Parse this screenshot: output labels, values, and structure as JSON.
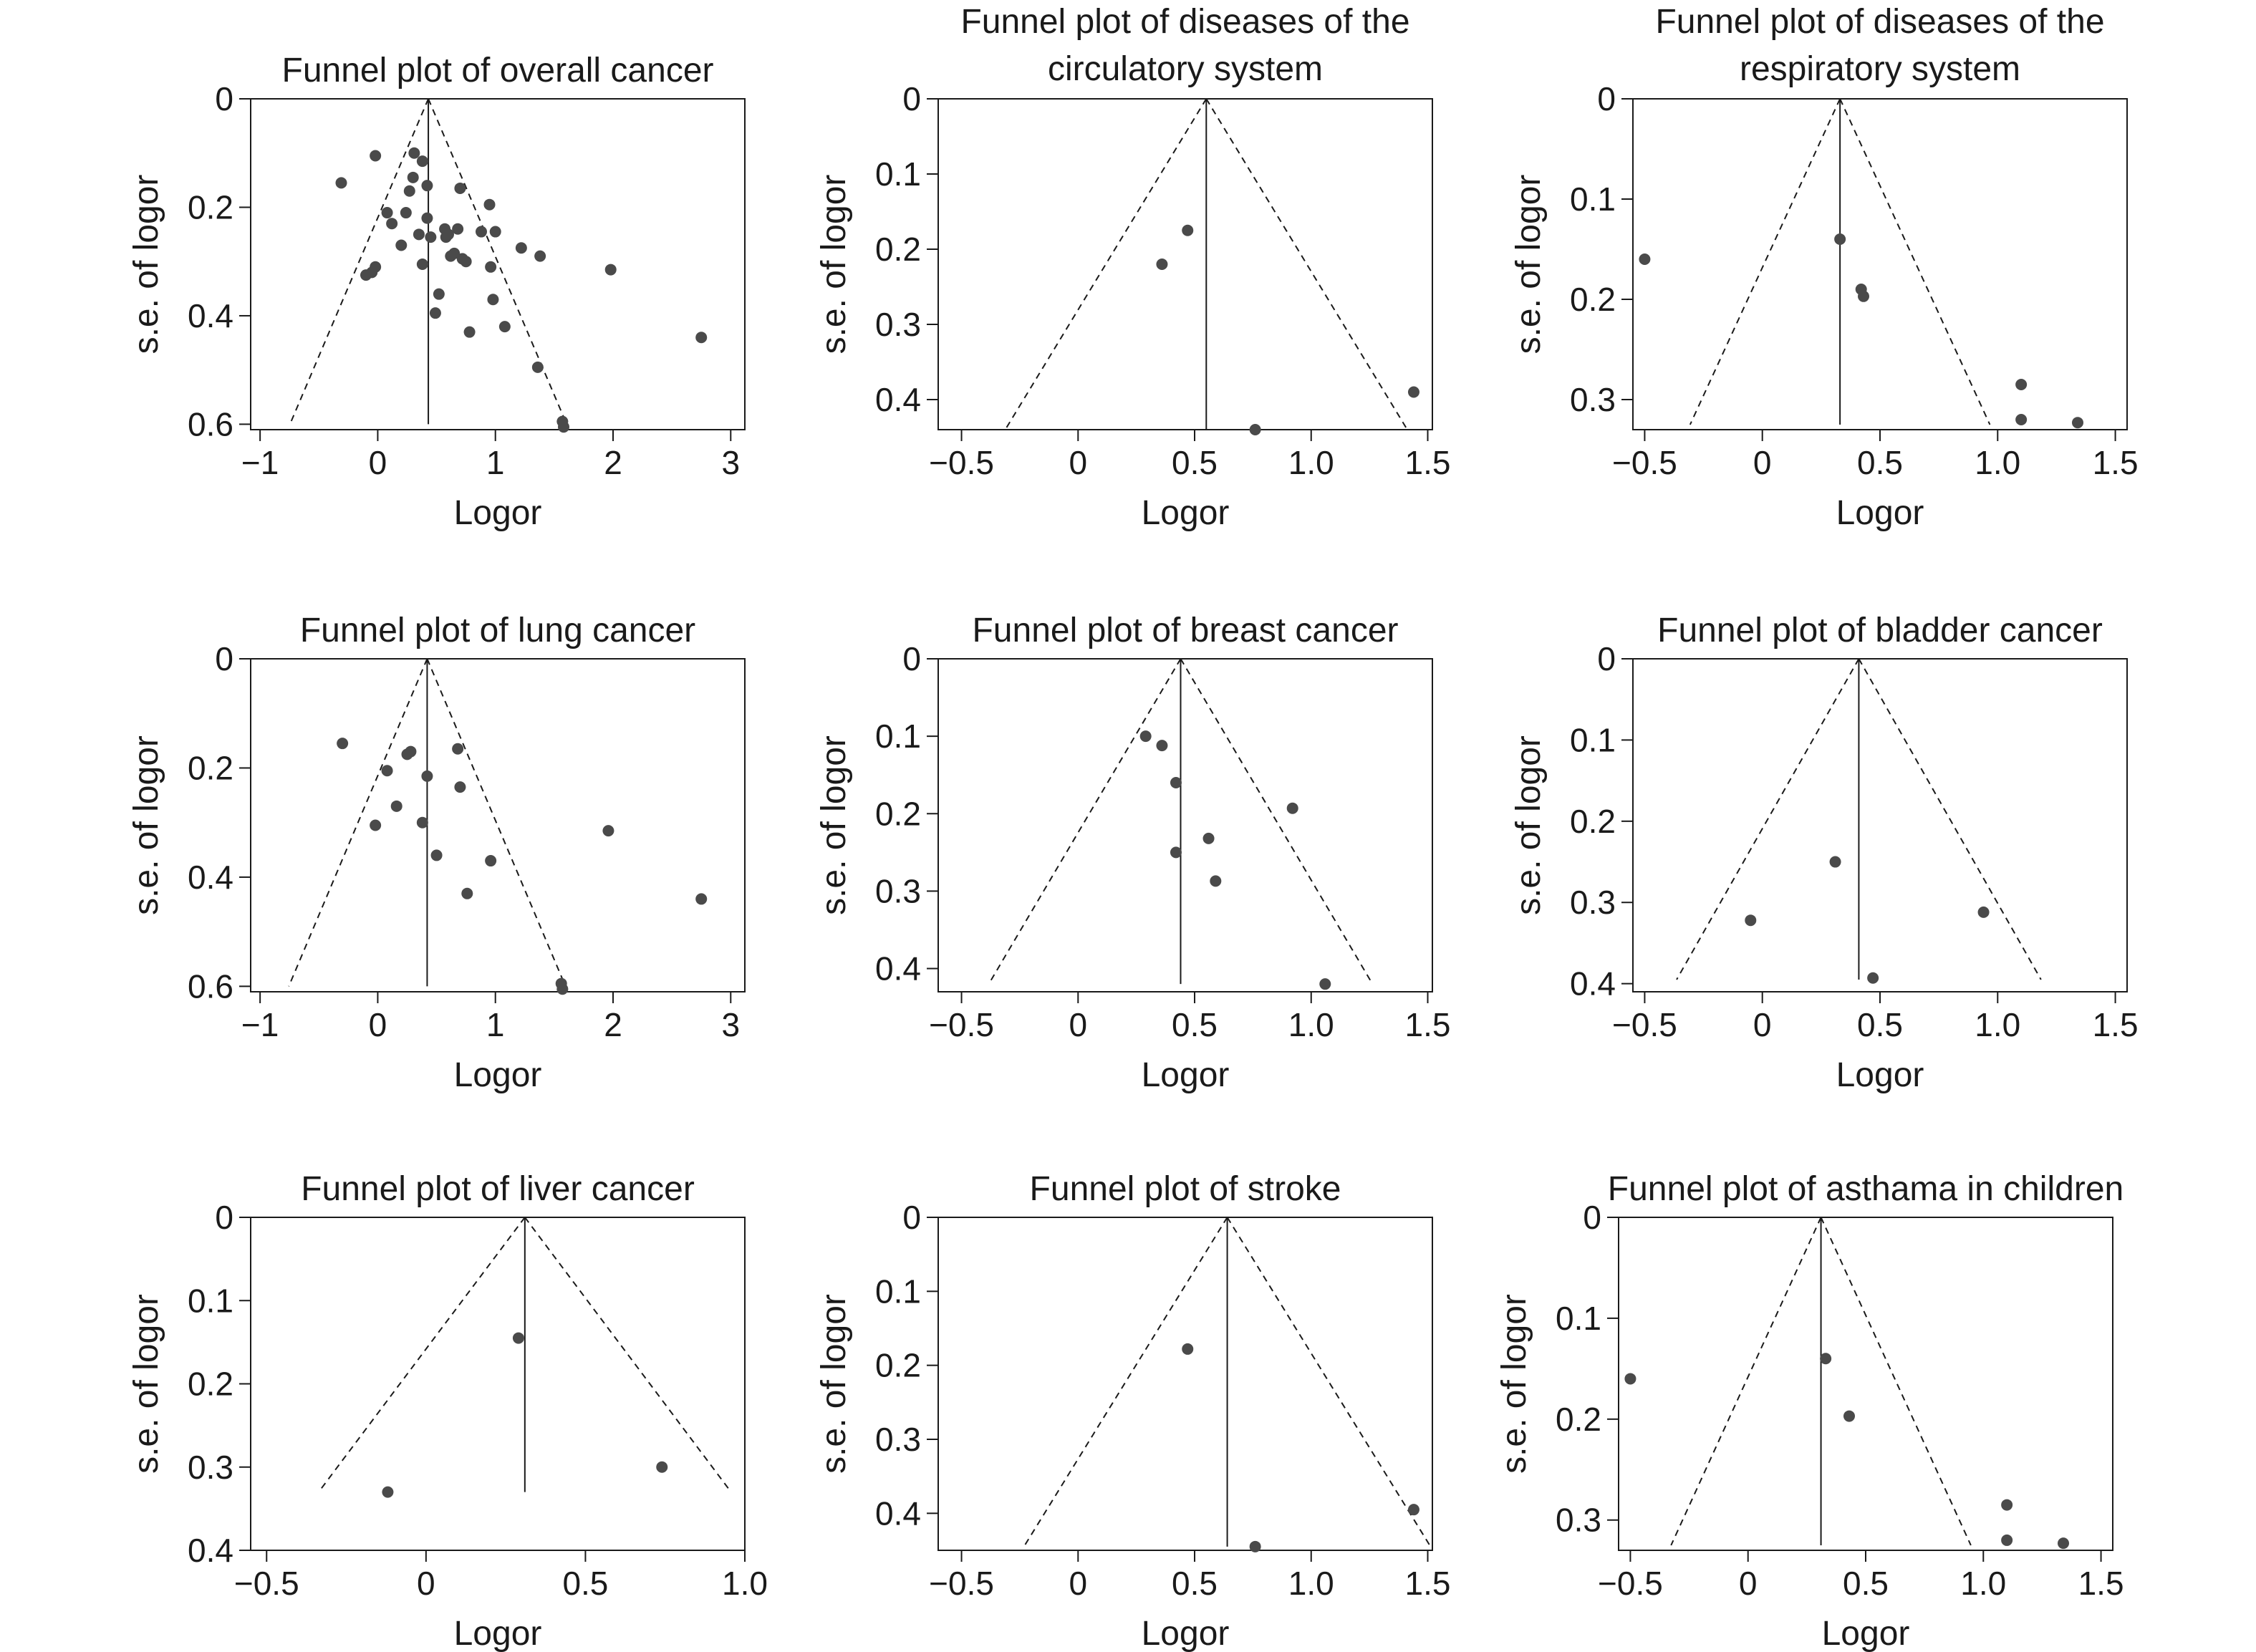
{
  "colors": {
    "point": "#4a4a4a",
    "line": "#1a1a1a",
    "funnel": "#1a1a1a",
    "background": "#ffffff"
  },
  "chart_data": [
    {
      "type": "scatter",
      "title": "Funnel plot of overall cancer",
      "xlabel": "Logor",
      "ylabel": "s.e. of logor",
      "xlim": [
        -1.08,
        3.12
      ],
      "ylim": [
        0,
        0.61
      ],
      "y_inverted": true,
      "xticks": [
        -1,
        0,
        1,
        2,
        3
      ],
      "xtick_labels": [
        "−1",
        "0",
        "1",
        "2",
        "3"
      ],
      "yticks": [
        0,
        0.2,
        0.4,
        0.6
      ],
      "ytick_labels": [
        "0",
        "0.2",
        "0.4",
        "0.6"
      ],
      "pooled": 0.43,
      "funnel_max_se": 0.6,
      "grid": false,
      "points": [
        {
          "x": -0.31,
          "y": 0.155
        },
        {
          "x": -0.02,
          "y": 0.105
        },
        {
          "x": 0.08,
          "y": 0.21
        },
        {
          "x": 0.12,
          "y": 0.23
        },
        {
          "x": 0.2,
          "y": 0.27
        },
        {
          "x": 0.24,
          "y": 0.21
        },
        {
          "x": 0.27,
          "y": 0.17
        },
        {
          "x": 0.3,
          "y": 0.145
        },
        {
          "x": 0.31,
          "y": 0.1
        },
        {
          "x": 0.35,
          "y": 0.25
        },
        {
          "x": 0.38,
          "y": 0.115
        },
        {
          "x": 0.38,
          "y": 0.305
        },
        {
          "x": 0.42,
          "y": 0.16
        },
        {
          "x": 0.42,
          "y": 0.22
        },
        {
          "x": 0.45,
          "y": 0.255
        },
        {
          "x": 0.49,
          "y": 0.395
        },
        {
          "x": 0.52,
          "y": 0.36
        },
        {
          "x": 0.57,
          "y": 0.24
        },
        {
          "x": 0.58,
          "y": 0.255
        },
        {
          "x": 0.6,
          "y": 0.25
        },
        {
          "x": 0.62,
          "y": 0.29
        },
        {
          "x": 0.65,
          "y": 0.285
        },
        {
          "x": 0.68,
          "y": 0.24
        },
        {
          "x": 0.7,
          "y": 0.165
        },
        {
          "x": 0.72,
          "y": 0.295
        },
        {
          "x": 0.75,
          "y": 0.3
        },
        {
          "x": 0.78,
          "y": 0.43
        },
        {
          "x": 0.88,
          "y": 0.245
        },
        {
          "x": 0.95,
          "y": 0.195
        },
        {
          "x": 0.96,
          "y": 0.31
        },
        {
          "x": 0.98,
          "y": 0.37
        },
        {
          "x": 1.0,
          "y": 0.245
        },
        {
          "x": 1.08,
          "y": 0.42
        },
        {
          "x": 1.22,
          "y": 0.275
        },
        {
          "x": 1.38,
          "y": 0.29
        },
        {
          "x": 1.36,
          "y": 0.495
        },
        {
          "x": 1.57,
          "y": 0.595
        },
        {
          "x": 1.58,
          "y": 0.605
        },
        {
          "x": 1.98,
          "y": 0.315
        },
        {
          "x": 2.75,
          "y": 0.44
        },
        {
          "x": -0.02,
          "y": 0.31
        },
        {
          "x": -0.1,
          "y": 0.325
        },
        {
          "x": -0.05,
          "y": 0.32
        }
      ]
    },
    {
      "type": "scatter",
      "title": "Funnel plot of diseases of the circulatory system",
      "xlabel": "Logor",
      "ylabel": "s.e. of logor",
      "xlim": [
        -0.6,
        1.52
      ],
      "ylim": [
        0,
        0.44
      ],
      "y_inverted": true,
      "xticks": [
        -0.5,
        0,
        0.5,
        1.0,
        1.5
      ],
      "xtick_labels": [
        "−0.5",
        "0",
        "0.5",
        "1.0",
        "1.5"
      ],
      "yticks": [
        0,
        0.1,
        0.2,
        0.3,
        0.4
      ],
      "ytick_labels": [
        "0",
        "0.1",
        "0.2",
        "0.3",
        "0.4"
      ],
      "pooled": 0.55,
      "funnel_max_se": 0.44,
      "grid": false,
      "points": [
        {
          "x": 0.36,
          "y": 0.22
        },
        {
          "x": 0.47,
          "y": 0.175
        },
        {
          "x": 0.76,
          "y": 0.44
        },
        {
          "x": 1.44,
          "y": 0.39
        }
      ]
    },
    {
      "type": "scatter",
      "title": "Funnel plot of diseases of the respiratory system",
      "xlabel": "Logor",
      "ylabel": "s.e. of logor",
      "xlim": [
        -0.55,
        1.55
      ],
      "ylim": [
        0,
        0.33
      ],
      "y_inverted": true,
      "xticks": [
        -0.5,
        0,
        0.5,
        1.0,
        1.5
      ],
      "xtick_labels": [
        "−0.5",
        "0",
        "0.5",
        "1.0",
        "1.5"
      ],
      "yticks": [
        0,
        0.1,
        0.2,
        0.3
      ],
      "ytick_labels": [
        "0",
        "0.1",
        "0.2",
        "0.3"
      ],
      "pooled": 0.33,
      "funnel_max_se": 0.325,
      "grid": false,
      "points": [
        {
          "x": -0.5,
          "y": 0.16
        },
        {
          "x": 0.33,
          "y": 0.14
        },
        {
          "x": 0.42,
          "y": 0.19
        },
        {
          "x": 0.43,
          "y": 0.197
        },
        {
          "x": 1.1,
          "y": 0.285
        },
        {
          "x": 1.1,
          "y": 0.32
        },
        {
          "x": 1.34,
          "y": 0.323
        }
      ]
    },
    {
      "type": "scatter",
      "title": "Funnel plot of lung cancer",
      "xlabel": "Logor",
      "ylabel": "s.e. of logor",
      "xlim": [
        -1.08,
        3.12
      ],
      "ylim": [
        0,
        0.61
      ],
      "y_inverted": true,
      "xticks": [
        -1,
        0,
        1,
        2,
        3
      ],
      "xtick_labels": [
        "−1",
        "0",
        "1",
        "2",
        "3"
      ],
      "yticks": [
        0,
        0.2,
        0.4,
        0.6
      ],
      "ytick_labels": [
        "0",
        "0.2",
        "0.4",
        "0.6"
      ],
      "pooled": 0.42,
      "funnel_max_se": 0.6,
      "grid": false,
      "points": [
        {
          "x": -0.3,
          "y": 0.155
        },
        {
          "x": 0.08,
          "y": 0.205
        },
        {
          "x": 0.16,
          "y": 0.27
        },
        {
          "x": 0.25,
          "y": 0.175
        },
        {
          "x": 0.28,
          "y": 0.17
        },
        {
          "x": 0.38,
          "y": 0.3
        },
        {
          "x": 0.42,
          "y": 0.215
        },
        {
          "x": 0.5,
          "y": 0.36
        },
        {
          "x": 0.68,
          "y": 0.165
        },
        {
          "x": 0.7,
          "y": 0.235
        },
        {
          "x": 0.76,
          "y": 0.43
        },
        {
          "x": 0.96,
          "y": 0.37
        },
        {
          "x": 1.56,
          "y": 0.595
        },
        {
          "x": 1.57,
          "y": 0.605
        },
        {
          "x": 1.96,
          "y": 0.315
        },
        {
          "x": 2.75,
          "y": 0.44
        },
        {
          "x": -0.02,
          "y": 0.305
        }
      ]
    },
    {
      "type": "scatter",
      "title": "Funnel plot of breast cancer",
      "xlabel": "Logor",
      "ylabel": "s.e. of logor",
      "xlim": [
        -0.6,
        1.52
      ],
      "ylim": [
        0,
        0.43
      ],
      "y_inverted": true,
      "xticks": [
        -0.5,
        0,
        0.5,
        1.0,
        1.5
      ],
      "xtick_labels": [
        "−0.5",
        "0",
        "0.5",
        "1.0",
        "1.5"
      ],
      "yticks": [
        0,
        0.1,
        0.2,
        0.3,
        0.4
      ],
      "ytick_labels": [
        "0",
        "0.1",
        "0.2",
        "0.3",
        "0.4"
      ],
      "pooled": 0.44,
      "funnel_max_se": 0.42,
      "grid": false,
      "points": [
        {
          "x": 0.29,
          "y": 0.1
        },
        {
          "x": 0.36,
          "y": 0.112
        },
        {
          "x": 0.42,
          "y": 0.16
        },
        {
          "x": 0.42,
          "y": 0.25
        },
        {
          "x": 0.56,
          "y": 0.232
        },
        {
          "x": 0.59,
          "y": 0.287
        },
        {
          "x": 0.92,
          "y": 0.193
        },
        {
          "x": 1.06,
          "y": 0.42
        }
      ]
    },
    {
      "type": "scatter",
      "title": "Funnel plot of bladder cancer",
      "xlabel": "Logor",
      "ylabel": "s.e. of logor",
      "xlim": [
        -0.55,
        1.55
      ],
      "ylim": [
        0,
        0.41
      ],
      "y_inverted": true,
      "xticks": [
        -0.5,
        0,
        0.5,
        1.0,
        1.5
      ],
      "xtick_labels": [
        "−0.5",
        "0",
        "0.5",
        "1.0",
        "1.5"
      ],
      "yticks": [
        0,
        0.1,
        0.2,
        0.3,
        0.4
      ],
      "ytick_labels": [
        "0",
        "0.1",
        "0.2",
        "0.3",
        "0.4"
      ],
      "pooled": 0.41,
      "funnel_max_se": 0.395,
      "grid": false,
      "points": [
        {
          "x": -0.05,
          "y": 0.322
        },
        {
          "x": 0.31,
          "y": 0.25
        },
        {
          "x": 0.47,
          "y": 0.393
        },
        {
          "x": 0.94,
          "y": 0.312
        }
      ]
    },
    {
      "type": "scatter",
      "title": "Funnel plot of liver cancer",
      "xlabel": "Logor",
      "ylabel": "s.e. of logor",
      "xlim": [
        -0.55,
        1.0
      ],
      "ylim": [
        0,
        0.4
      ],
      "y_inverted": true,
      "xticks": [
        -0.5,
        0,
        0.5,
        1.0
      ],
      "xtick_labels": [
        "−0.5",
        "0",
        "0.5",
        "1.0"
      ],
      "yticks": [
        0,
        0.1,
        0.2,
        0.3,
        0.4
      ],
      "ytick_labels": [
        "0",
        "0.1",
        "0.2",
        "0.3",
        "0.4"
      ],
      "pooled": 0.31,
      "funnel_max_se": 0.33,
      "grid": false,
      "points": [
        {
          "x": -0.12,
          "y": 0.33
        },
        {
          "x": 0.29,
          "y": 0.145
        },
        {
          "x": 0.74,
          "y": 0.3
        }
      ]
    },
    {
      "type": "scatter",
      "title": "Funnel plot of stroke",
      "xlabel": "Logor",
      "ylabel": "s.e. of logor",
      "xlim": [
        -0.6,
        1.52
      ],
      "ylim": [
        0,
        0.45
      ],
      "y_inverted": true,
      "xticks": [
        -0.5,
        0,
        0.5,
        1.0,
        1.5
      ],
      "xtick_labels": [
        "−0.5",
        "0",
        "0.5",
        "1.0",
        "1.5"
      ],
      "yticks": [
        0,
        0.1,
        0.2,
        0.3,
        0.4
      ],
      "ytick_labels": [
        "0",
        "0.1",
        "0.2",
        "0.3",
        "0.4"
      ],
      "pooled": 0.64,
      "funnel_max_se": 0.445,
      "grid": false,
      "points": [
        {
          "x": 0.47,
          "y": 0.178
        },
        {
          "x": 0.76,
          "y": 0.445
        },
        {
          "x": 1.44,
          "y": 0.395
        }
      ]
    },
    {
      "type": "scatter",
      "title": "Funnel plot of asthama in children",
      "xlabel": "Logor",
      "ylabel": "s.e. of logor",
      "xlim": [
        -0.55,
        1.55
      ],
      "ylim": [
        0,
        0.33
      ],
      "y_inverted": true,
      "xticks": [
        -0.5,
        0,
        0.5,
        1.0,
        1.5
      ],
      "xtick_labels": [
        "−0.5",
        "0",
        "0.5",
        "1.0",
        "1.5"
      ],
      "yticks": [
        0,
        0.1,
        0.2,
        0.3
      ],
      "ytick_labels": [
        "0",
        "0.1",
        "0.2",
        "0.3"
      ],
      "pooled": 0.31,
      "funnel_max_se": 0.325,
      "grid": false,
      "points": [
        {
          "x": -0.5,
          "y": 0.16
        },
        {
          "x": 0.33,
          "y": 0.14
        },
        {
          "x": 0.43,
          "y": 0.197
        },
        {
          "x": 1.1,
          "y": 0.285
        },
        {
          "x": 1.1,
          "y": 0.32
        },
        {
          "x": 1.34,
          "y": 0.323
        }
      ]
    }
  ]
}
